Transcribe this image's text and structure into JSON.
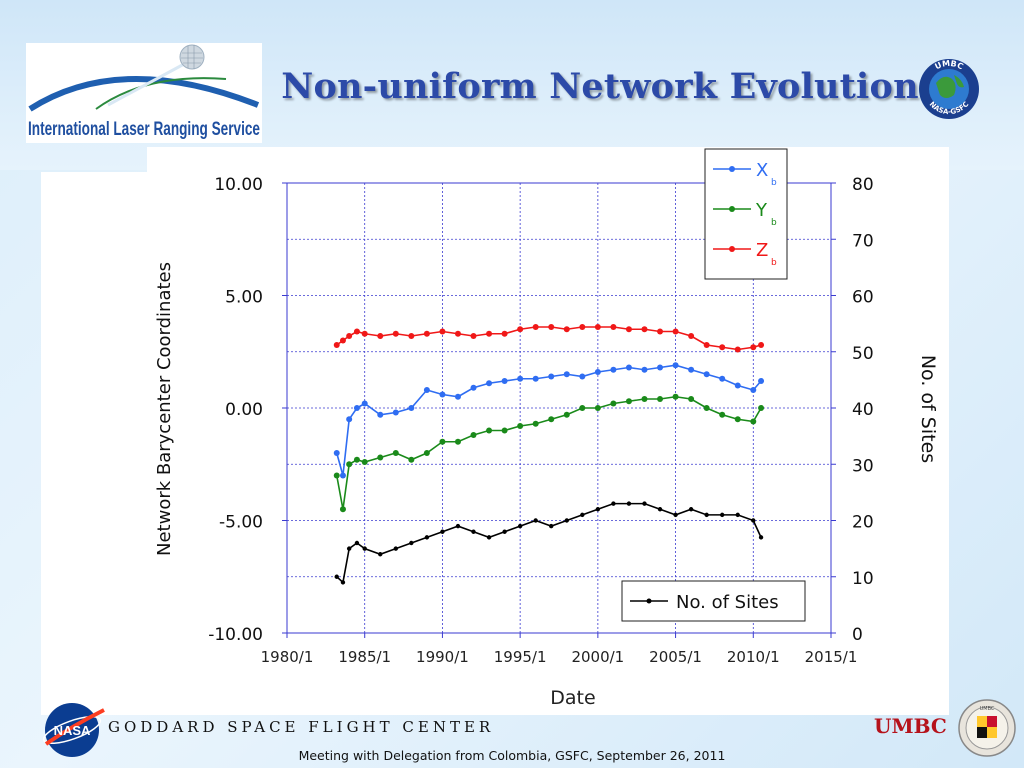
{
  "header": {
    "title": "Non-uniform Network Evolution",
    "logo_left_text": "International Laser Ranging Service",
    "logo_right_text_top": "UMBC",
    "logo_right_text_bottom": "NASA-GSFC"
  },
  "footer": {
    "org_text": "GODDARD SPACE FLIGHT CENTER",
    "nasa_logo_text": "NASA",
    "umbc_text": "UMBC",
    "seal_text": "UMBC",
    "meeting_text": "Meeting with Delegation from Colombia, GSFC, September 26, 2011"
  },
  "colors": {
    "title": "#2c4aa8",
    "x_series": "#2f6df2",
    "y_series": "#1a8a1a",
    "z_series": "#f01818",
    "sites_series": "#000000",
    "grid": "#3a3ad0",
    "umbc_red": "#b5121b"
  },
  "chart_data": {
    "type": "line",
    "xlabel": "Date",
    "ylabel": "Network Barycenter Coordinates",
    "y2label": "No. of Sites",
    "xlim": [
      1980.0,
      2015.0
    ],
    "ylim": [
      -10,
      10
    ],
    "y2lim": [
      0,
      80
    ],
    "xticks": [
      "1980/1",
      "1985/1",
      "1990/1",
      "1995/1",
      "2000/1",
      "2005/1",
      "2010/1",
      "2015/1"
    ],
    "yticks": [
      "10.00",
      "5.00",
      "0.00",
      "-5.00",
      "-10.00"
    ],
    "y2ticks": [
      "80",
      "70",
      "60",
      "50",
      "40",
      "30",
      "20",
      "10",
      "0"
    ],
    "grid": true,
    "legend_top": {
      "placement": "top-right",
      "entries": [
        "X",
        "Y",
        "Z"
      ],
      "subscript": "b"
    },
    "legend_bottom": {
      "placement": "bottom-right",
      "entries": [
        "No. of Sites"
      ]
    },
    "series": [
      {
        "name": "X",
        "subscript": "b",
        "axis": "left",
        "x": [
          1983.2,
          1983.6,
          1984.0,
          1984.5,
          1985.0,
          1986.0,
          1987.0,
          1988.0,
          1989.0,
          1990.0,
          1991.0,
          1992.0,
          1993.0,
          1994.0,
          1995.0,
          1996.0,
          1997.0,
          1998.0,
          1999.0,
          2000.0,
          2001.0,
          2002.0,
          2003.0,
          2004.0,
          2005.0,
          2006.0,
          2007.0,
          2008.0,
          2009.0,
          2010.0,
          2010.5
        ],
        "y": [
          -2.0,
          -3.0,
          -0.5,
          0.0,
          0.2,
          -0.3,
          -0.2,
          0.0,
          0.8,
          0.6,
          0.5,
          0.9,
          1.1,
          1.2,
          1.3,
          1.3,
          1.4,
          1.5,
          1.4,
          1.6,
          1.7,
          1.8,
          1.7,
          1.8,
          1.9,
          1.7,
          1.5,
          1.3,
          1.0,
          0.8,
          1.2
        ]
      },
      {
        "name": "Y",
        "subscript": "b",
        "axis": "left",
        "x": [
          1983.2,
          1983.6,
          1984.0,
          1984.5,
          1985.0,
          1986.0,
          1987.0,
          1988.0,
          1989.0,
          1990.0,
          1991.0,
          1992.0,
          1993.0,
          1994.0,
          1995.0,
          1996.0,
          1997.0,
          1998.0,
          1999.0,
          2000.0,
          2001.0,
          2002.0,
          2003.0,
          2004.0,
          2005.0,
          2006.0,
          2007.0,
          2008.0,
          2009.0,
          2010.0,
          2010.5
        ],
        "y": [
          -3.0,
          -4.5,
          -2.5,
          -2.3,
          -2.4,
          -2.2,
          -2.0,
          -2.3,
          -2.0,
          -1.5,
          -1.5,
          -1.2,
          -1.0,
          -1.0,
          -0.8,
          -0.7,
          -0.5,
          -0.3,
          0.0,
          0.0,
          0.2,
          0.3,
          0.4,
          0.4,
          0.5,
          0.4,
          0.0,
          -0.3,
          -0.5,
          -0.6,
          0.0
        ]
      },
      {
        "name": "Z",
        "subscript": "b",
        "axis": "left",
        "x": [
          1983.2,
          1983.6,
          1984.0,
          1984.5,
          1985.0,
          1986.0,
          1987.0,
          1988.0,
          1989.0,
          1990.0,
          1991.0,
          1992.0,
          1993.0,
          1994.0,
          1995.0,
          1996.0,
          1997.0,
          1998.0,
          1999.0,
          2000.0,
          2001.0,
          2002.0,
          2003.0,
          2004.0,
          2005.0,
          2006.0,
          2007.0,
          2008.0,
          2009.0,
          2010.0,
          2010.5
        ],
        "y": [
          2.8,
          3.0,
          3.2,
          3.4,
          3.3,
          3.2,
          3.3,
          3.2,
          3.3,
          3.4,
          3.3,
          3.2,
          3.3,
          3.3,
          3.5,
          3.6,
          3.6,
          3.5,
          3.6,
          3.6,
          3.6,
          3.5,
          3.5,
          3.4,
          3.4,
          3.2,
          2.8,
          2.7,
          2.6,
          2.7,
          2.8
        ]
      },
      {
        "name": "No. of Sites",
        "axis": "right",
        "x": [
          1983.2,
          1983.6,
          1984.0,
          1984.5,
          1985.0,
          1986.0,
          1987.0,
          1988.0,
          1989.0,
          1990.0,
          1991.0,
          1992.0,
          1993.0,
          1994.0,
          1995.0,
          1996.0,
          1997.0,
          1998.0,
          1999.0,
          2000.0,
          2001.0,
          2002.0,
          2003.0,
          2004.0,
          2005.0,
          2006.0,
          2007.0,
          2008.0,
          2009.0,
          2010.0,
          2010.5
        ],
        "y": [
          10,
          9,
          15,
          16,
          15,
          14,
          15,
          16,
          17,
          18,
          19,
          18,
          17,
          18,
          19,
          20,
          19,
          20,
          21,
          22,
          23,
          23,
          23,
          22,
          21,
          22,
          21,
          21,
          21,
          20,
          17
        ]
      }
    ]
  }
}
